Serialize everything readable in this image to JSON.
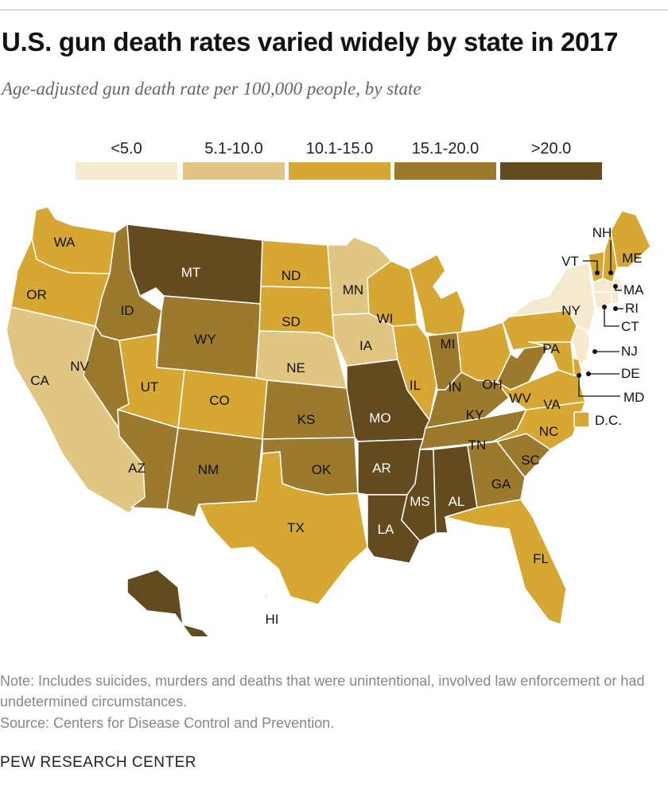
{
  "title": "U.S. gun death rates varied widely by state in 2017",
  "subtitle": "Age-adjusted gun death rate per 100,000 people, by state",
  "legend": {
    "items": [
      {
        "label": "<5.0",
        "color": "#f5ead0"
      },
      {
        "label": "5.1-10.0",
        "color": "#e1c683"
      },
      {
        "label": "10.1-15.0",
        "color": "#d6a733"
      },
      {
        "label": "15.1-20.0",
        "color": "#9c7a2d"
      },
      {
        "label": ">20.0",
        "color": "#634a1f"
      }
    ]
  },
  "states": [
    {
      "code": "WA",
      "bin": 2
    },
    {
      "code": "OR",
      "bin": 2
    },
    {
      "code": "CA",
      "bin": 1
    },
    {
      "code": "ID",
      "bin": 3
    },
    {
      "code": "NV",
      "bin": 3
    },
    {
      "code": "MT",
      "bin": 4
    },
    {
      "code": "WY",
      "bin": 3
    },
    {
      "code": "UT",
      "bin": 2
    },
    {
      "code": "CO",
      "bin": 2
    },
    {
      "code": "AZ",
      "bin": 3
    },
    {
      "code": "NM",
      "bin": 3
    },
    {
      "code": "ND",
      "bin": 2
    },
    {
      "code": "SD",
      "bin": 2
    },
    {
      "code": "NE",
      "bin": 1
    },
    {
      "code": "KS",
      "bin": 3
    },
    {
      "code": "OK",
      "bin": 3
    },
    {
      "code": "TX",
      "bin": 2
    },
    {
      "code": "MN",
      "bin": 1
    },
    {
      "code": "IA",
      "bin": 1
    },
    {
      "code": "MO",
      "bin": 4
    },
    {
      "code": "AR",
      "bin": 4
    },
    {
      "code": "LA",
      "bin": 4
    },
    {
      "code": "WI",
      "bin": 2
    },
    {
      "code": "IL",
      "bin": 2
    },
    {
      "code": "MI",
      "bin": 2
    },
    {
      "code": "IN",
      "bin": 3
    },
    {
      "code": "OH",
      "bin": 2
    },
    {
      "code": "KY",
      "bin": 3
    },
    {
      "code": "TN",
      "bin": 3
    },
    {
      "code": "MS",
      "bin": 4
    },
    {
      "code": "AL",
      "bin": 4
    },
    {
      "code": "GA",
      "bin": 3
    },
    {
      "code": "FL",
      "bin": 2
    },
    {
      "code": "SC",
      "bin": 3
    },
    {
      "code": "NC",
      "bin": 2
    },
    {
      "code": "VA",
      "bin": 2
    },
    {
      "code": "WV",
      "bin": 3
    },
    {
      "code": "PA",
      "bin": 2
    },
    {
      "code": "NY",
      "bin": 0
    },
    {
      "code": "VT",
      "bin": 2
    },
    {
      "code": "NH",
      "bin": 2
    },
    {
      "code": "ME",
      "bin": 2
    },
    {
      "code": "MA",
      "bin": 0
    },
    {
      "code": "RI",
      "bin": 0
    },
    {
      "code": "CT",
      "bin": 0
    },
    {
      "code": "NJ",
      "bin": 0
    },
    {
      "code": "DE",
      "bin": 2
    },
    {
      "code": "MD",
      "bin": 2
    },
    {
      "code": "AK",
      "bin": 4
    },
    {
      "code": "HI",
      "bin": 0
    },
    {
      "code": "D.C.",
      "bin": 2
    }
  ],
  "note": "Note: Includes suicides, murders and deaths that were unintentional, involved law enforcement or had undetermined circumstances.",
  "source": "Source: Centers for Disease Control and Prevention.",
  "brand": "PEW RESEARCH CENTER"
}
